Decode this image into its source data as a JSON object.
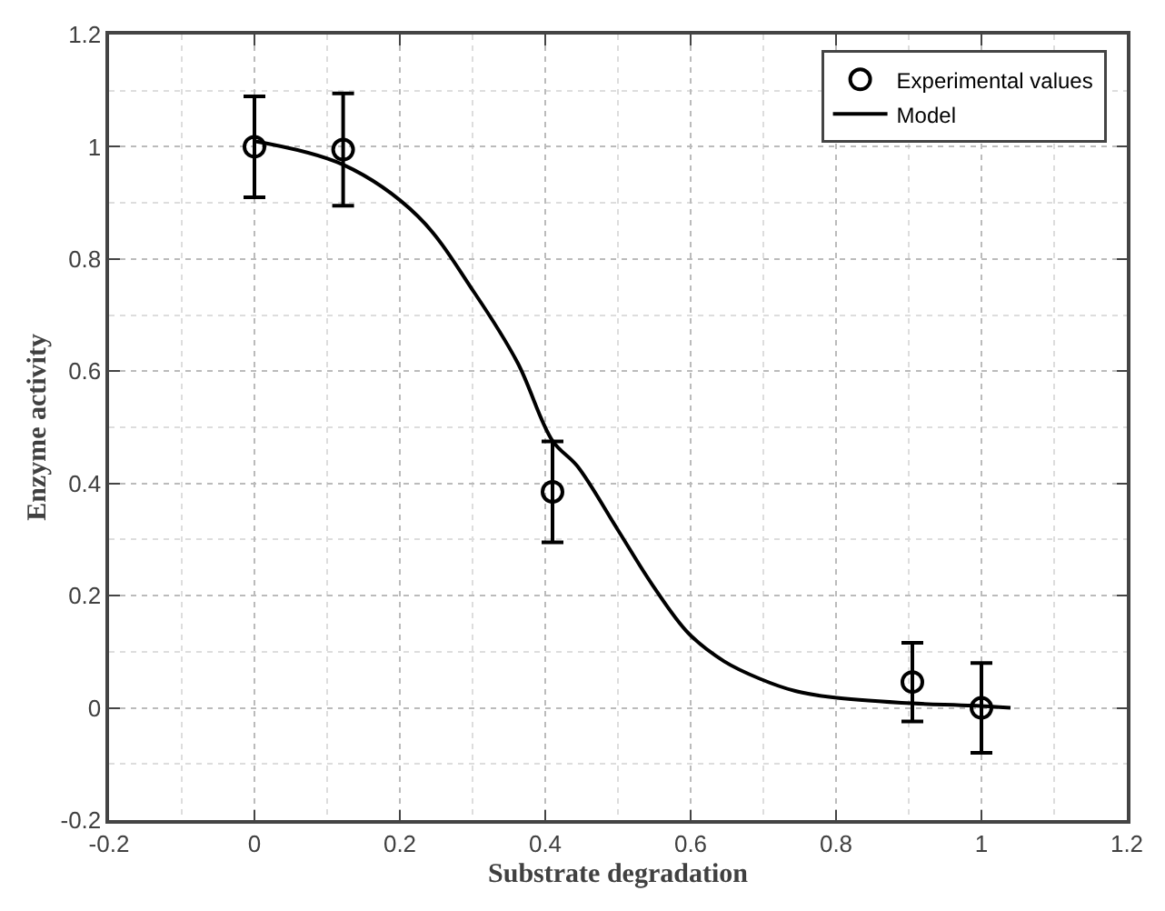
{
  "chart_data": {
    "type": "scatter",
    "xlabel": "Substrate degradation",
    "ylabel": "Enzyme activity",
    "xlim": [
      -0.2,
      1.2
    ],
    "xticks": [
      -0.2,
      0,
      0.2,
      0.4,
      0.6,
      0.8,
      1,
      1.2
    ],
    "ylim": [
      -0.2,
      1.2
    ],
    "yticks": [
      -0.2,
      0,
      0.2,
      0.4,
      0.6,
      0.8,
      1,
      1.2
    ],
    "grid": true,
    "legend": "top right",
    "marker": "circle",
    "series": [
      {
        "name": "Experimental values",
        "color": "#000000",
        "x": [
          0,
          0.122,
          0.41,
          0.905,
          1.0
        ],
        "values": [
          1.0,
          0.995,
          0.385,
          0.046,
          0.0
        ],
        "errors": [
          0.09,
          0.1,
          0.09,
          0.07,
          0.08
        ]
      },
      {
        "name": "Model",
        "type": "line",
        "color": "#000000",
        "marker": "none",
        "line_style": "solid",
        "x": [
          0,
          0.122,
          0.225,
          0.303,
          0.362,
          0.41,
          0.444,
          0.499,
          0.547,
          0.597,
          0.646,
          0.695,
          0.744,
          0.793,
          0.89,
          0.988,
          1.04
        ],
        "values": [
          1.01,
          0.968,
          0.876,
          0.739,
          0.615,
          0.476,
          0.431,
          0.319,
          0.22,
          0.133,
          0.083,
          0.052,
          0.03,
          0.019,
          0.009,
          0.004,
          0.0
        ]
      }
    ]
  }
}
